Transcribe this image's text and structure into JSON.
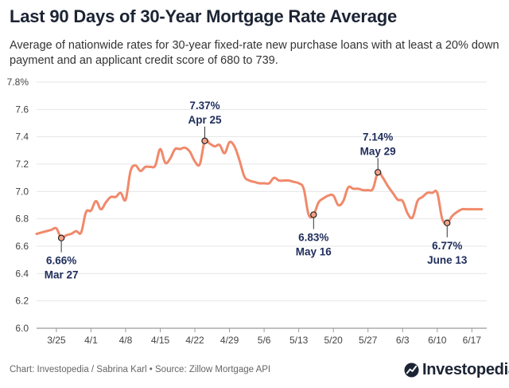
{
  "chart_data": {
    "type": "line",
    "title": "Last 90 Days of 30-Year Mortgage Rate Average",
    "subtitle": "Average of nationwide rates for 30-year fixed-rate new purchase loans with at least a 20% down payment and an applicant credit score of 680 to 739.",
    "xlabel": "",
    "ylabel": "",
    "ylim": [
      6.0,
      7.8
    ],
    "y_ticks": [
      "6.0",
      "6.2",
      "6.4",
      "6.6",
      "6.8",
      "7.0",
      "7.2",
      "7.4",
      "7.6",
      "7.8%"
    ],
    "y_tick_values": [
      6.0,
      6.2,
      6.4,
      6.6,
      6.8,
      7.0,
      7.2,
      7.4,
      7.6,
      7.8
    ],
    "x_ticks": [
      "3/25",
      "4/1",
      "4/8",
      "4/15",
      "4/22",
      "4/29",
      "5/6",
      "5/13",
      "5/20",
      "5/27",
      "6/3",
      "6/10",
      "6/17"
    ],
    "x_tick_days": [
      4,
      11,
      18,
      25,
      32,
      39,
      46,
      53,
      60,
      67,
      74,
      81,
      88
    ],
    "x_day_range": [
      0,
      91
    ],
    "grid": true,
    "series": [
      {
        "name": "30-Year Mortgage Rate Average",
        "color": "#f0896a",
        "days": [
          0,
          1,
          2,
          3,
          4,
          5,
          6,
          7,
          8,
          9,
          10,
          11,
          12,
          13,
          14,
          15,
          16,
          17,
          18,
          19,
          20,
          21,
          22,
          23,
          24,
          25,
          26,
          27,
          28,
          29,
          30,
          31,
          32,
          33,
          34,
          35,
          36,
          37,
          38,
          39,
          40,
          41,
          42,
          43,
          44,
          45,
          46,
          47,
          48,
          49,
          50,
          51,
          52,
          53,
          54,
          55,
          56,
          57,
          58,
          59,
          60,
          61,
          62,
          63,
          64,
          65,
          66,
          67,
          68,
          69,
          70,
          71,
          72,
          73,
          74,
          75,
          76,
          77,
          78,
          79,
          80,
          81,
          82,
          83,
          84,
          85,
          86,
          87,
          88,
          89,
          90
        ],
        "values": [
          6.69,
          6.7,
          6.71,
          6.72,
          6.73,
          6.66,
          6.68,
          6.69,
          6.71,
          6.7,
          6.85,
          6.86,
          6.93,
          6.87,
          6.92,
          6.96,
          6.96,
          6.99,
          6.94,
          7.15,
          7.19,
          7.15,
          7.18,
          7.18,
          7.19,
          7.31,
          7.21,
          7.24,
          7.31,
          7.31,
          7.32,
          7.29,
          7.22,
          7.2,
          7.37,
          7.35,
          7.33,
          7.34,
          7.28,
          7.36,
          7.33,
          7.23,
          7.11,
          7.08,
          7.07,
          7.06,
          7.06,
          7.06,
          7.1,
          7.08,
          7.08,
          7.08,
          7.07,
          7.06,
          7.02,
          6.83,
          6.83,
          6.92,
          6.95,
          6.97,
          6.97,
          6.9,
          6.93,
          7.03,
          7.02,
          7.02,
          7.01,
          7.01,
          7.02,
          7.14,
          7.1,
          7.04,
          6.99,
          6.94,
          6.93,
          6.84,
          6.81,
          6.93,
          6.96,
          6.99,
          6.99,
          6.99,
          6.8,
          6.77,
          6.82,
          6.85,
          6.87,
          6.87,
          6.87,
          6.87,
          6.87
        ]
      }
    ],
    "annotations": [
      {
        "day": 5,
        "value": 6.66,
        "label_value": "6.66%",
        "label_date": "Mar 27",
        "position": "below"
      },
      {
        "day": 34,
        "value": 7.37,
        "label_value": "7.37%",
        "label_date": "Apr 25",
        "position": "above"
      },
      {
        "day": 56,
        "value": 6.83,
        "label_value": "6.83%",
        "label_date": "May 16",
        "position": "below"
      },
      {
        "day": 69,
        "value": 7.14,
        "label_value": "7.14%",
        "label_date": "May 29",
        "position": "above"
      },
      {
        "day": 83,
        "value": 6.77,
        "label_value": "6.77%",
        "label_date": "June 13",
        "position": "below"
      }
    ]
  },
  "footer": {
    "source": "Chart: Investopedia / Sabrina Karl • Source: Zillow Mortgage API",
    "brand": "Investopedia"
  },
  "colors": {
    "line": "#f0896a",
    "annotation_text": "#1f2d5c",
    "grid": "#e6e6e6",
    "title": "#1c2434"
  }
}
